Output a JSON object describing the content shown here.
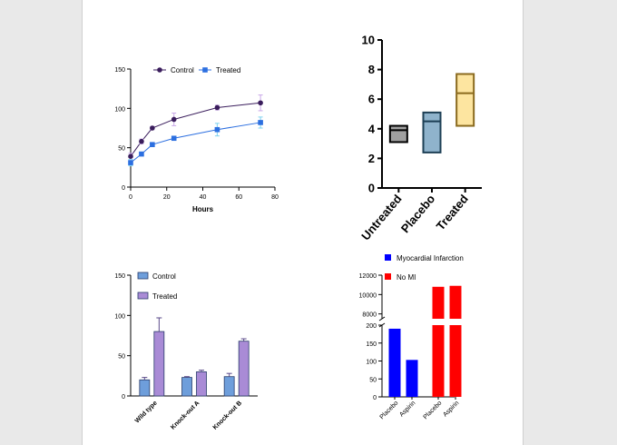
{
  "chart_data": [
    {
      "type": "line",
      "title": "",
      "xlabel": "Hours",
      "ylabel": "",
      "xlim": [
        0,
        80
      ],
      "ylim": [
        0,
        150
      ],
      "x_ticks": [
        "0",
        "20",
        "40",
        "60",
        "80"
      ],
      "y_ticks": [
        "0",
        "50",
        "100",
        "150"
      ],
      "legend": "top",
      "series": [
        {
          "name": "Control",
          "color": "#3a1d5c",
          "error_color": "#c9a8e8",
          "x": [
            0,
            6,
            12,
            24,
            48,
            72
          ],
          "values": [
            39,
            58,
            75,
            86,
            101,
            107
          ],
          "errors": [
            4,
            3,
            2,
            8,
            3,
            10
          ]
        },
        {
          "name": "Treated",
          "color": "#2c6fe0",
          "error_color": "#7fd3f0",
          "x": [
            0,
            6,
            12,
            24,
            48,
            72
          ],
          "values": [
            31,
            42,
            54,
            62,
            73,
            82
          ],
          "errors": [
            4,
            2,
            2,
            2,
            8,
            7
          ]
        }
      ]
    },
    {
      "type": "box",
      "title": "",
      "xlabel": "",
      "ylabel": "",
      "ylim": [
        0,
        10
      ],
      "y_ticks": [
        "0",
        "2",
        "4",
        "6",
        "8",
        "10"
      ],
      "categories": [
        "Untreated",
        "Placebo",
        "Treated"
      ],
      "fills": [
        "#a0a0a0",
        "#8fb3cc",
        "#fde5a0"
      ],
      "strokes": [
        "#000000",
        "#1d3f55",
        "#8a6a1e"
      ],
      "low": [
        3.1,
        2.4,
        4.2
      ],
      "median": [
        3.9,
        4.5,
        6.4
      ],
      "high": [
        4.2,
        5.1,
        7.7
      ]
    },
    {
      "type": "bar",
      "title": "",
      "xlabel": "",
      "ylabel": "",
      "ylim": [
        0,
        150
      ],
      "y_ticks": [
        "0",
        "50",
        "100",
        "150"
      ],
      "categories": [
        "Wild type",
        "Knock-out A",
        "Knock-out B"
      ],
      "legend": "top-left",
      "series": [
        {
          "name": "Control",
          "color": "#6e9edb",
          "values": [
            20,
            23,
            24
          ],
          "errors": [
            3,
            1,
            4
          ]
        },
        {
          "name": "Treated",
          "color": "#a98bd6",
          "values": [
            80,
            30,
            68
          ],
          "errors": [
            17,
            2,
            3
          ]
        }
      ]
    },
    {
      "type": "bar",
      "title": "",
      "xlabel": "",
      "ylabel": "",
      "axis_break": true,
      "ylim_lower": [
        0,
        200
      ],
      "ylim_upper": [
        7500,
        12000
      ],
      "y_ticks_lower": [
        "0",
        "50",
        "100",
        "150",
        "200"
      ],
      "y_ticks_upper": [
        "8000",
        "10000",
        "12000"
      ],
      "categories": [
        "Placebo",
        "Aspirin",
        "Placebo",
        "Aspirin"
      ],
      "groups": [
        "Myocardial Infarction",
        "Myocardial Infarction",
        "No MI",
        "No MI"
      ],
      "legend": "top",
      "series": [
        {
          "name": "Myocardial Infarction",
          "color": "#0000ff"
        },
        {
          "name": "No MI",
          "color": "#ff0000"
        }
      ],
      "values": [
        190,
        103,
        10800,
        10900
      ]
    }
  ]
}
